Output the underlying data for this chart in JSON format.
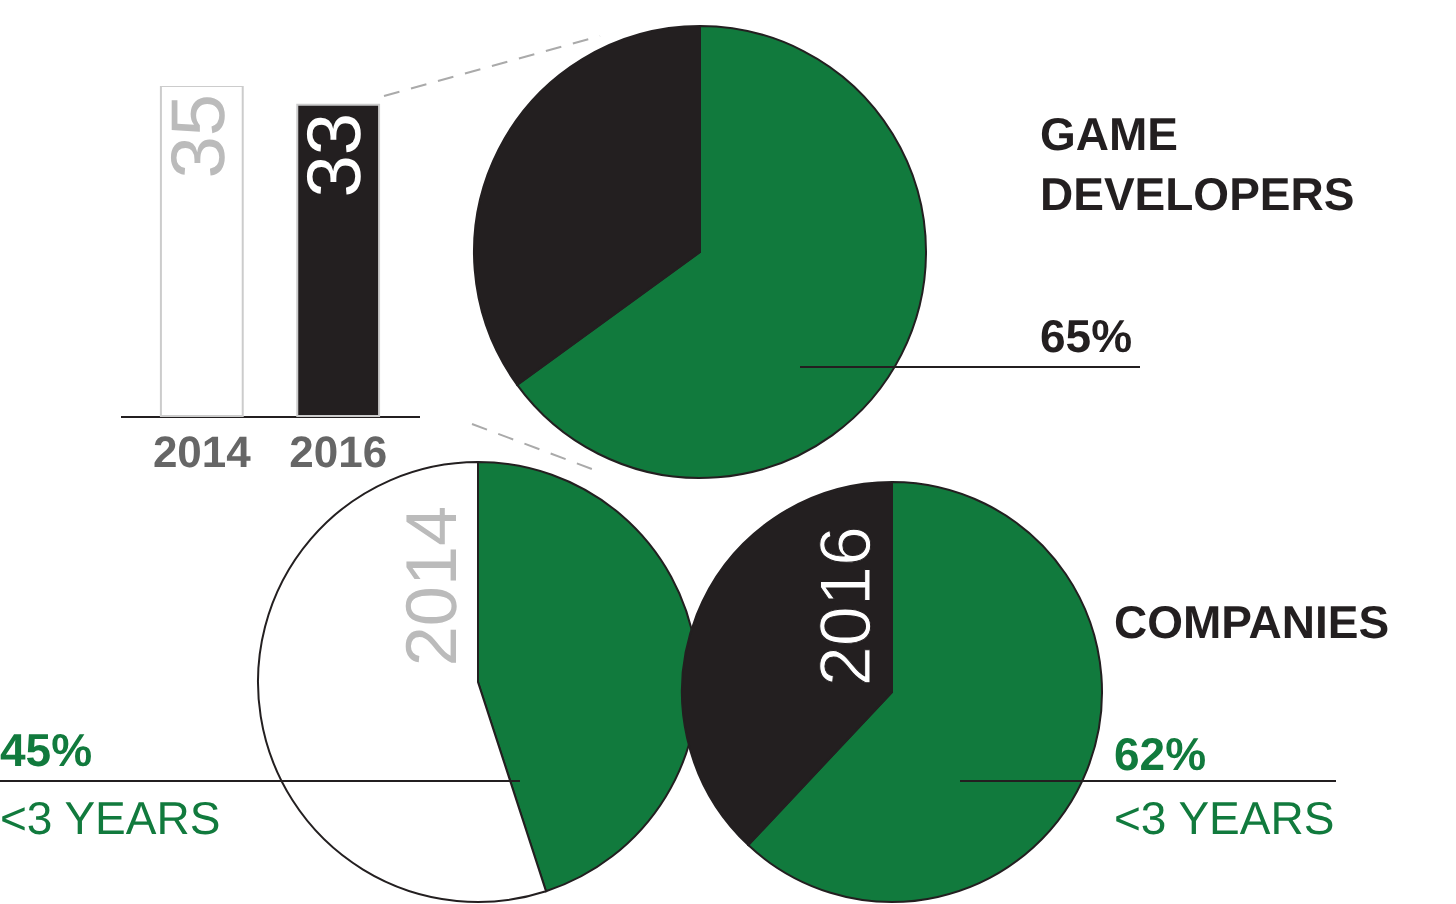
{
  "chart_data": [
    {
      "type": "bar",
      "categories": [
        "2014",
        "2016"
      ],
      "values": [
        35,
        33
      ],
      "colors": [
        "#ffffff",
        "#231f20"
      ],
      "data_labels": true
    },
    {
      "type": "pie",
      "title": "GAME DEVELOPERS",
      "categories": [
        null,
        null
      ],
      "values": [
        65,
        35
      ],
      "colors": [
        "#117a3d",
        "#231f20"
      ],
      "value_labels": [
        "65%",
        null
      ]
    },
    {
      "type": "pie",
      "title": "2014",
      "categories": [
        null,
        null
      ],
      "values": [
        45,
        55
      ],
      "colors": [
        "#117a3d",
        "#ffffff"
      ],
      "value_labels": [
        "45%",
        null
      ],
      "annotations": [
        "<3 YEARS"
      ]
    },
    {
      "type": "pie",
      "title": "2016",
      "categories": [
        null,
        null
      ],
      "values": [
        62,
        38
      ],
      "colors": [
        "#117a3d",
        "#231f20"
      ],
      "value_labels": [
        "62%",
        null
      ],
      "annotations": [
        "COMPANIES",
        "<3 YEARS"
      ]
    }
  ]
}
